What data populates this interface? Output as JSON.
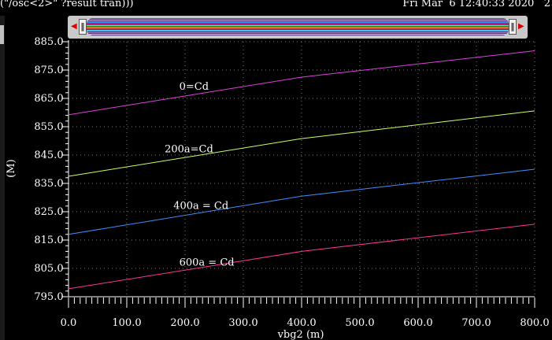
{
  "header": {
    "expression": "(\"/osc<2>\" ?result tran)))",
    "timestamp": "Fri Mar  6 12:40:33 2020   2"
  },
  "overview": {
    "stripe_colors": [
      "#cc33cc",
      "#99ff33",
      "#3399ff",
      "#ff3399",
      "#66ffcc",
      "#ffcc33",
      "#ff6666",
      "#33ccff",
      "#cc66ff",
      "#ccff66"
    ]
  },
  "chart_data": {
    "type": "line",
    "xlabel": "vbg2 (m)",
    "ylabel": "(M)",
    "xlim": [
      0,
      800
    ],
    "ylim": [
      795,
      885
    ],
    "x_ticks": [
      "0.0",
      "100.0",
      "200.0",
      "300.0",
      "400.0",
      "500.0",
      "600.0",
      "700.0",
      "800.0"
    ],
    "y_ticks": [
      "795.0",
      "805.0",
      "815.0",
      "825.0",
      "835.0",
      "845.0",
      "855.0",
      "865.0",
      "875.0",
      "885.0"
    ],
    "grid": true,
    "series": [
      {
        "name": "0=Cd",
        "color": "#e040e0",
        "x": [
          0,
          400,
          800
        ],
        "y": [
          859.2,
          872.5,
          881.8
        ]
      },
      {
        "name": "200a=Cd",
        "color": "#ccff66",
        "x": [
          0,
          400,
          800
        ],
        "y": [
          837.5,
          850.8,
          860.6
        ]
      },
      {
        "name": "400a = Cd",
        "color": "#3f8fff",
        "x": [
          0,
          400,
          800
        ],
        "y": [
          817.0,
          830.5,
          840.0
        ]
      },
      {
        "name": "600a = Cd",
        "color": "#ff3399",
        "x": [
          0,
          400,
          800
        ],
        "y": [
          797.8,
          811.0,
          820.6
        ]
      }
    ],
    "annotations": [
      {
        "text": "0=Cd",
        "x": 190,
        "y": 868
      },
      {
        "text": "200a=Cd",
        "x": 165,
        "y": 846
      },
      {
        "text": "400a = Cd",
        "x": 180,
        "y": 826
      },
      {
        "text": "600a = Cd",
        "x": 190,
        "y": 806
      }
    ]
  }
}
